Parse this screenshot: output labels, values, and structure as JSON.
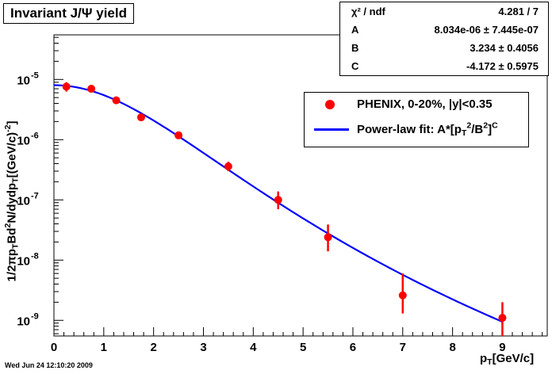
{
  "title": "Invariant J/Ψ yield",
  "stats": {
    "rows": [
      {
        "label": "χ² / ndf",
        "value": "4.281 / 7"
      },
      {
        "label": "A",
        "value": "8.034e-06 ± 7.445e-07"
      },
      {
        "label": "B",
        "value": "3.234 ± 0.4056"
      },
      {
        "label": "C",
        "value": "-4.172 ± 0.5975"
      }
    ]
  },
  "legend": {
    "data_label": "PHENIX, 0-20%, |y|<0.35",
    "fit_label_prefix": "Power-law fit: A*[p",
    "fit_label_sub1": "T",
    "fit_label_sup1": "2",
    "fit_label_mid": "/B",
    "fit_label_sup2": "2",
    "fit_label_end": "]",
    "fit_label_sup3": "C"
  },
  "axes": {
    "xlabel_main": "p",
    "xlabel_sub": "T",
    "xlabel_rest": "[GeV/c]",
    "ylabel_pre": "1/2πp",
    "ylabel_sub1": "T",
    "ylabel_mid1": "Bd",
    "ylabel_sup1": "2",
    "ylabel_mid2": "N/dydp",
    "ylabel_sub2": "T",
    "ylabel_mid3": "[(GeV/c)",
    "ylabel_sup2": "-2",
    "ylabel_end": "]"
  },
  "datestamp": "Wed Jun 24 12:10:20 2009",
  "colors": {
    "data": "#ff0000",
    "fit": "#0000ff",
    "axis": "#000000"
  },
  "chart_data": {
    "type": "scatter",
    "title": "Invariant J/Ψ yield",
    "xlabel": "p_T[GeV/c]",
    "ylabel": "1/2πp_T Bd²N/dydp_T [(GeV/c)^-2]",
    "xlim": [
      0,
      9.9
    ],
    "ylim": [
      5.5e-10,
      5.5e-05
    ],
    "yscale": "log",
    "x_ticks": [
      "0",
      "1",
      "2",
      "3",
      "4",
      "5",
      "6",
      "7",
      "8",
      "9"
    ],
    "y_ticks": [
      {
        "base": "10",
        "exp": "-9",
        "value": 1e-09
      },
      {
        "base": "10",
        "exp": "-8",
        "value": 1e-08
      },
      {
        "base": "10",
        "exp": "-7",
        "value": 1e-07
      },
      {
        "base": "10",
        "exp": "-6",
        "value": 1e-06
      },
      {
        "base": "10",
        "exp": "-5",
        "value": 1e-05
      }
    ],
    "series": [
      {
        "name": "PHENIX, 0-20%, |y|<0.35",
        "type": "scatter",
        "x": [
          0.25,
          0.75,
          1.25,
          1.75,
          2.5,
          3.5,
          4.5,
          5.5,
          7.0,
          9.0
        ],
        "y": [
          7.6e-06,
          7e-06,
          4.5e-06,
          2.35e-06,
          1.18e-06,
          3.6e-07,
          1e-07,
          2.4e-08,
          2.6e-09,
          1.1e-09
        ],
        "err_low": [
          6.3e-06,
          6.5e-06,
          4.1e-06,
          2.2e-06,
          1.1e-06,
          3e-07,
          7e-08,
          1.4e-08,
          1.3e-09,
          5.5e-10
        ],
        "err_high": [
          9e-06,
          7.6e-06,
          4.9e-06,
          2.55e-06,
          1.27e-06,
          4.3e-07,
          1.38e-07,
          3.9e-08,
          6e-09,
          2e-09
        ]
      },
      {
        "name": "Power-law fit: A*[p_T²/B²]^C",
        "type": "line",
        "function": "A*(1+(x/B)^2)^C",
        "params": {
          "A": 8.034e-06,
          "B": 3.234,
          "C": -4.172
        },
        "x_range": [
          0.0,
          9.0
        ]
      }
    ],
    "grid": false,
    "legend_position": "top-right"
  }
}
